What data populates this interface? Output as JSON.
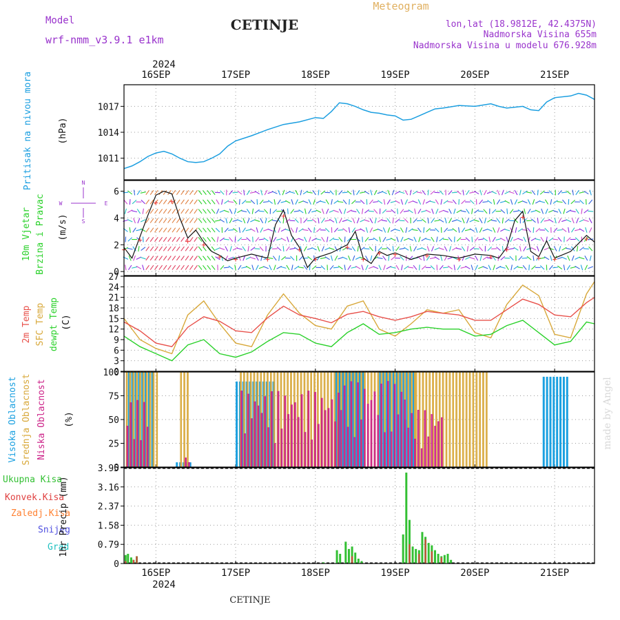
{
  "header": {
    "model_label": "Model",
    "model_name": "wrf-nmm_v3.9.1 e1km",
    "location": "CETINJE",
    "title": "Meteogram",
    "coords": "lon,lat (18.9812E, 42.4375N)",
    "altitude": "Nadmorska Visina 655m",
    "model_altitude": "Nadmorska Visina u modelu 676.928m",
    "footer_location": "CETINJE",
    "watermark": "made by Angel"
  },
  "colors": {
    "pressure": "#1a9ee0",
    "temp2m": "#e8504a",
    "sfc": "#d8a83a",
    "dewpt": "#2ad12a",
    "high_cloud": "#1aa0e0",
    "mid_cloud": "#d8a83a",
    "low_cloud": "#cc2288",
    "total_precip": "#33c033",
    "conv_precip": "#e04040",
    "frozen": "#ff8030",
    "snow": "#5050e0",
    "hail": "#20c0c0",
    "model_text": "#9933cc",
    "title_text": "#e0b060"
  },
  "chart_data": {
    "type": "line",
    "x_axis": {
      "unit": "days",
      "range": [
        15.6,
        21.5
      ],
      "year_label": "2024",
      "tick_labels": [
        "16SEP",
        "17SEP",
        "18SEP",
        "19SEP",
        "20SEP",
        "21SEP"
      ],
      "tick_values": [
        16,
        17,
        18,
        19,
        20,
        21
      ]
    },
    "panels": [
      {
        "name": "pressure",
        "ylabel_lines": [
          "Pritisak na nivou mora",
          "(hPa)"
        ],
        "ylim": [
          1008.5,
          1019.5
        ],
        "yticks": [
          1011,
          1014,
          1017
        ],
        "series": [
          {
            "x": [
              15.6,
              15.7,
              15.8,
              15.9,
              16.0,
              16.1,
              16.2,
              16.3,
              16.4,
              16.5,
              16.6,
              16.7,
              16.8,
              16.9,
              17.0,
              17.2,
              17.4,
              17.6,
              17.8,
              18.0,
              18.1,
              18.2,
              18.3,
              18.4,
              18.5,
              18.6,
              18.7,
              18.8,
              18.9,
              19.0,
              19.1,
              19.2,
              19.3,
              19.4,
              19.5,
              19.6,
              19.8,
              20.0,
              20.2,
              20.3,
              20.4,
              20.5,
              20.6,
              20.7,
              20.8,
              20.9,
              21.0,
              21.2,
              21.3,
              21.4,
              21.5
            ],
            "y": [
              1009.8,
              1010.1,
              1010.6,
              1011.2,
              1011.6,
              1011.8,
              1011.5,
              1011.0,
              1010.6,
              1010.5,
              1010.6,
              1011.0,
              1011.5,
              1012.4,
              1013.0,
              1013.6,
              1014.3,
              1014.9,
              1015.2,
              1015.7,
              1015.6,
              1016.4,
              1017.4,
              1017.3,
              1017.0,
              1016.6,
              1016.3,
              1016.2,
              1016.0,
              1015.9,
              1015.4,
              1015.5,
              1015.9,
              1016.3,
              1016.7,
              1016.8,
              1017.1,
              1017.0,
              1017.3,
              1017.0,
              1016.8,
              1016.9,
              1017.0,
              1016.6,
              1016.5,
              1017.5,
              1018.0,
              1018.2,
              1018.5,
              1018.3,
              1017.8
            ]
          }
        ]
      },
      {
        "name": "wind",
        "ylabel_lines": [
          "10m Vjetar",
          "Brzina i Pravac",
          "(m/s)"
        ],
        "compass": [
          "N",
          "W",
          "E",
          "S"
        ],
        "ylim": [
          -0.3,
          6.8
        ],
        "yticks": [
          0,
          2,
          4,
          6
        ],
        "series": [
          {
            "x": [
              15.6,
              15.7,
              15.8,
              15.9,
              16.0,
              16.1,
              16.2,
              16.3,
              16.4,
              16.5,
              16.6,
              16.7,
              16.8,
              16.9,
              17.0,
              17.2,
              17.4,
              17.5,
              17.6,
              17.7,
              17.8,
              17.9,
              18.0,
              18.2,
              18.4,
              18.5,
              18.6,
              18.7,
              18.8,
              18.9,
              19.0,
              19.2,
              19.4,
              19.6,
              19.8,
              20.0,
              20.2,
              20.3,
              20.4,
              20.5,
              20.6,
              20.7,
              20.8,
              20.9,
              21.0,
              21.2,
              21.4,
              21.5
            ],
            "y": [
              1.8,
              1.0,
              2.6,
              4.2,
              5.7,
              6.0,
              5.8,
              4.0,
              2.5,
              3.1,
              2.2,
              1.5,
              1.2,
              0.8,
              1.0,
              1.3,
              1.0,
              3.5,
              4.6,
              2.7,
              1.8,
              0.3,
              1.0,
              1.4,
              2.0,
              3.0,
              1.0,
              0.6,
              1.5,
              1.2,
              1.4,
              0.9,
              1.3,
              1.2,
              1.0,
              1.3,
              1.2,
              1.0,
              1.8,
              3.8,
              4.5,
              1.5,
              1.1,
              2.3,
              1.0,
              1.5,
              2.7,
              2.2
            ]
          }
        ]
      },
      {
        "name": "temperature",
        "ylabel_lines": [
          "2m Temp",
          "SFC Temp",
          "dewpt Temp",
          "(C)"
        ],
        "ylim": [
          0,
          27
        ],
        "yticks": [
          0,
          3,
          6,
          9,
          12,
          15,
          18,
          21,
          24,
          27
        ],
        "series": [
          {
            "name": "2m Temp",
            "x": [
              15.6,
              15.8,
              16.0,
              16.2,
              16.4,
              16.6,
              16.8,
              17.0,
              17.2,
              17.4,
              17.6,
              17.8,
              18.0,
              18.2,
              18.4,
              18.6,
              18.8,
              19.0,
              19.2,
              19.4,
              19.6,
              19.8,
              20.0,
              20.2,
              20.4,
              20.6,
              20.8,
              21.0,
              21.2,
              21.4,
              21.5
            ],
            "y": [
              14.0,
              11.5,
              8.0,
              7.0,
              12.5,
              15.5,
              14.2,
              11.5,
              11.0,
              15.2,
              18.5,
              16.0,
              15.0,
              13.8,
              16.2,
              17.0,
              15.5,
              14.5,
              15.5,
              17.0,
              16.5,
              16.0,
              14.5,
              14.5,
              17.5,
              20.5,
              19.0,
              16.0,
              15.5,
              19.5,
              21.0
            ]
          },
          {
            "name": "SFC Temp",
            "x": [
              15.6,
              15.8,
              16.0,
              16.2,
              16.4,
              16.6,
              16.8,
              17.0,
              17.2,
              17.4,
              17.6,
              17.8,
              18.0,
              18.2,
              18.4,
              18.6,
              18.8,
              19.0,
              19.2,
              19.4,
              19.6,
              19.8,
              20.0,
              20.2,
              20.4,
              20.6,
              20.8,
              21.0,
              21.2,
              21.4,
              21.5
            ],
            "y": [
              15.0,
              9.0,
              6.5,
              5.0,
              16.0,
              20.0,
              13.5,
              8.0,
              7.0,
              16.0,
              22.0,
              16.5,
              13.0,
              12.0,
              18.5,
              20.0,
              12.0,
              10.0,
              13.5,
              17.5,
              16.5,
              17.5,
              11.0,
              9.5,
              19.0,
              24.5,
              21.5,
              10.5,
              9.5,
              22.0,
              25.5
            ]
          },
          {
            "name": "dewpt Temp",
            "x": [
              15.6,
              15.8,
              16.0,
              16.2,
              16.4,
              16.6,
              16.8,
              17.0,
              17.2,
              17.4,
              17.6,
              17.8,
              18.0,
              18.2,
              18.4,
              18.6,
              18.8,
              19.0,
              19.2,
              19.4,
              19.6,
              19.8,
              20.0,
              20.2,
              20.4,
              20.6,
              20.8,
              21.0,
              21.2,
              21.4,
              21.5
            ],
            "y": [
              10.0,
              7.0,
              5.0,
              3.0,
              7.5,
              9.0,
              5.0,
              4.0,
              5.5,
              8.5,
              11.0,
              10.5,
              8.0,
              7.0,
              11.0,
              13.5,
              10.5,
              11.0,
              12.0,
              12.5,
              12.0,
              12.0,
              10.0,
              10.5,
              13.0,
              14.5,
              11.0,
              7.5,
              8.5,
              14.0,
              13.5
            ]
          }
        ]
      },
      {
        "name": "cloud",
        "ylabel_lines": [
          "Visoka Oblacnost",
          "Srednja Oblacnost",
          "Niska Oblacnost",
          "(%)"
        ],
        "ylim": [
          0,
          100
        ],
        "yticks": [
          0,
          25,
          50,
          75,
          100
        ],
        "series": [
          {
            "name": "Visoka Oblacnost",
            "intervals": [
              [
                15.65,
                15.95,
                100
              ],
              [
                16.25,
                16.45,
                5
              ],
              [
                17.0,
                17.5,
                90
              ],
              [
                18.25,
                18.6,
                100
              ],
              [
                18.8,
                19.25,
                100
              ],
              [
                20.85,
                21.15,
                95
              ]
            ]
          },
          {
            "name": "Srednja Oblacnost",
            "intervals": [
              [
                15.62,
                16.0,
                100
              ],
              [
                16.3,
                16.4,
                100
              ],
              [
                17.05,
                19.25,
                100
              ],
              [
                19.25,
                20.15,
                100
              ]
            ]
          },
          {
            "name": "Niska Oblacnost",
            "intervals": [
              [
                15.62,
                15.9,
                70
              ],
              [
                16.35,
                16.4,
                10
              ],
              [
                17.05,
                18.3,
                80
              ],
              [
                18.3,
                19.1,
                90
              ],
              [
                19.1,
                19.6,
                60
              ]
            ]
          }
        ]
      },
      {
        "name": "precip",
        "ylabel_lines": [
          "1hr Precip (mm)"
        ],
        "legend": [
          "Ukupna Kisa",
          "Konvek.Kisa",
          "Zaledj.Kisa",
          "Snijeg",
          "Grad"
        ],
        "ylim": [
          0,
          3.95
        ],
        "yticks": [
          0,
          0.79,
          1.58,
          2.37,
          3.16,
          3.95
        ],
        "series": [
          {
            "name": "Ukupna Kisa",
            "x": [
              15.62,
              15.65,
              15.69,
              15.72,
              15.76,
              18.1,
              18.27,
              18.31,
              18.38,
              18.42,
              18.46,
              18.5,
              18.54,
              18.58,
              19.1,
              19.14,
              19.18,
              19.22,
              19.26,
              19.3,
              19.34,
              19.38,
              19.42,
              19.46,
              19.5,
              19.54,
              19.58,
              19.62,
              19.66,
              19.7
            ],
            "y": [
              0.35,
              0.4,
              0.25,
              0.15,
              0.3,
              0.05,
              0.55,
              0.4,
              0.9,
              0.6,
              0.7,
              0.45,
              0.2,
              0.1,
              1.2,
              3.75,
              1.8,
              0.7,
              0.6,
              0.55,
              1.3,
              1.1,
              0.85,
              0.75,
              0.55,
              0.4,
              0.3,
              0.35,
              0.4,
              0.15
            ]
          },
          {
            "name": "Konvek.Kisa",
            "x": [
              15.62,
              15.72,
              15.76,
              18.46,
              19.18,
              19.3,
              19.38,
              19.46,
              19.58
            ],
            "y": [
              0.1,
              0.15,
              0.3,
              0.3,
              0.8,
              0.4,
              1.0,
              0.5,
              0.25
            ]
          }
        ]
      }
    ]
  }
}
